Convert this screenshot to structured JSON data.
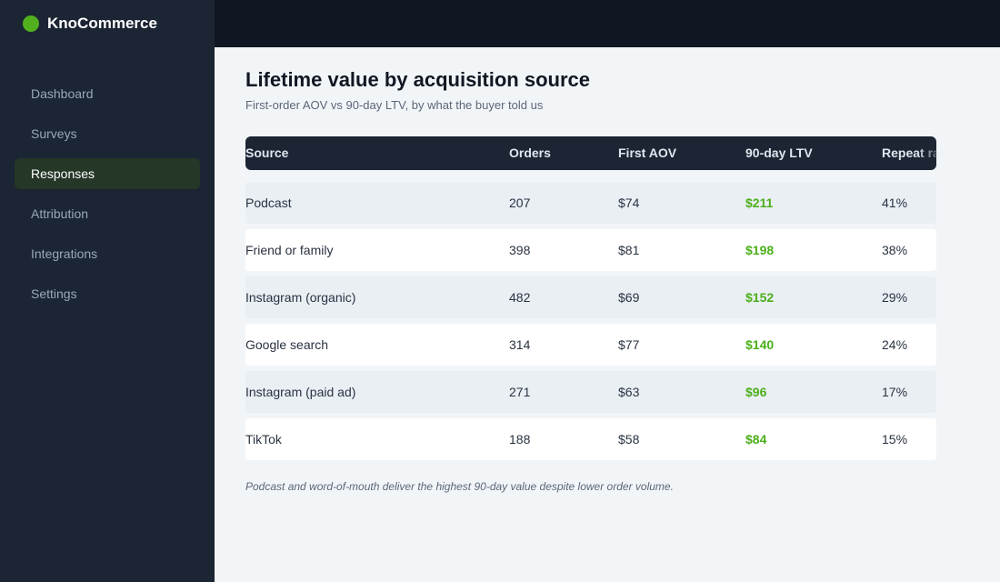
{
  "sidebar": {
    "brand": "KnoCommerce",
    "nav": [
      "Dashboard",
      "Surveys",
      "Responses",
      "Attribution",
      "Integrations",
      "Settings"
    ],
    "active": 2
  },
  "header": {
    "title": "Lifetime value by acquisition source",
    "subtitle": "First-order AOV vs 90-day LTV, by what the buyer told us"
  },
  "table": {
    "columns": [
      "Source",
      "Orders",
      "First AOV",
      "90-day LTV",
      "Repeat rate"
    ],
    "rows": [
      [
        "Podcast",
        "207",
        "$74",
        "$211",
        "41%"
      ],
      [
        "Friend or family",
        "398",
        "$81",
        "$198",
        "38%"
      ],
      [
        "Instagram (organic)",
        "482",
        "$69",
        "$152",
        "29%"
      ],
      [
        "Google search",
        "314",
        "$77",
        "$140",
        "24%"
      ],
      [
        "Instagram (paid ad)",
        "271",
        "$63",
        "$96",
        "17%"
      ],
      [
        "TikTok",
        "188",
        "$58",
        "$84",
        "15%"
      ]
    ]
  },
  "footnote": "Podcast and word-of-mouth deliver the highest 90-day value despite lower order volume."
}
